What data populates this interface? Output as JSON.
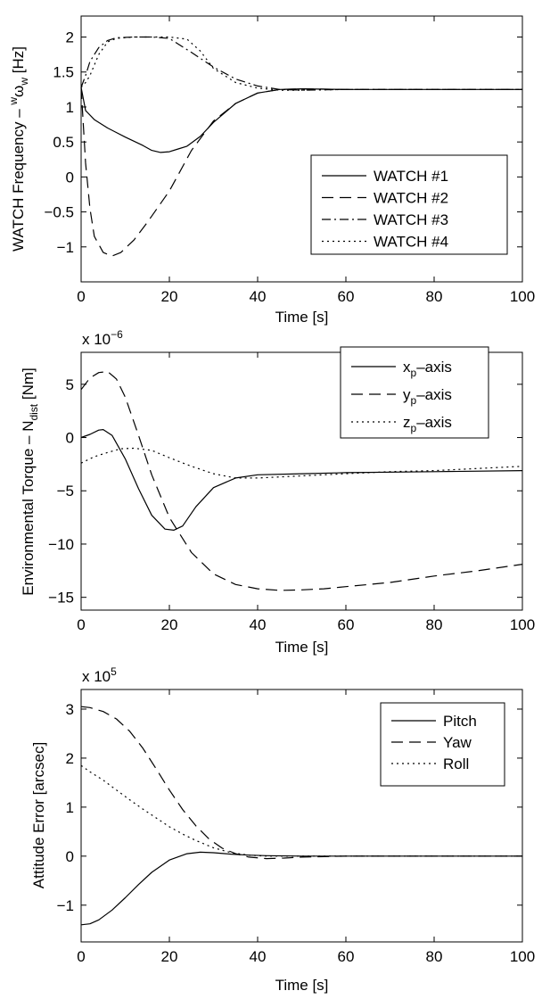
{
  "chart_data": [
    {
      "type": "line",
      "xlabel": "Time [s]",
      "ylabel": "WATCH Frequency – ",
      "ylabel_omega_sup": "w",
      "ylabel_omega": "ω",
      "ylabel_omega_sub": "w",
      "ylabel_unit": " [Hz]",
      "xlim": [
        0,
        100
      ],
      "ylim": [
        -1.5,
        2.3
      ],
      "xticks": [
        0,
        20,
        40,
        60,
        80,
        100
      ],
      "yticks": [
        -1,
        -0.5,
        0,
        0.5,
        1,
        1.5,
        2
      ],
      "grid": false,
      "legend_position": "lower-right",
      "series": [
        {
          "name": "WATCH #1",
          "style": "solid",
          "x": [
            0,
            1,
            3,
            6,
            10,
            14,
            16,
            18,
            20,
            22,
            24,
            27,
            30,
            35,
            40,
            45,
            50,
            60,
            80,
            100
          ],
          "y": [
            1.28,
            0.95,
            0.82,
            0.7,
            0.57,
            0.45,
            0.38,
            0.35,
            0.36,
            0.4,
            0.44,
            0.58,
            0.78,
            1.05,
            1.2,
            1.25,
            1.26,
            1.25,
            1.25,
            1.25
          ]
        },
        {
          "name": "WATCH #2",
          "style": "dashed",
          "x": [
            0,
            1,
            2,
            3,
            5,
            7,
            9,
            12,
            15,
            20,
            25,
            30,
            35,
            40,
            45,
            50,
            60,
            80,
            100
          ],
          "y": [
            1.28,
            0.2,
            -0.45,
            -0.85,
            -1.08,
            -1.13,
            -1.08,
            -0.9,
            -0.65,
            -0.2,
            0.38,
            0.8,
            1.05,
            1.2,
            1.25,
            1.26,
            1.25,
            1.25,
            1.25
          ]
        },
        {
          "name": "WATCH #3",
          "style": "dashdot",
          "x": [
            0,
            1,
            2,
            4,
            6,
            8,
            12,
            16,
            20,
            22,
            25,
            30,
            35,
            40,
            45,
            50,
            60,
            80,
            100
          ],
          "y": [
            1.28,
            1.45,
            1.65,
            1.85,
            1.95,
            1.99,
            2.0,
            2.0,
            1.98,
            1.9,
            1.78,
            1.57,
            1.4,
            1.3,
            1.25,
            1.24,
            1.25,
            1.25,
            1.25
          ]
        },
        {
          "name": "WATCH #4",
          "style": "dotted",
          "x": [
            0,
            1,
            2,
            4,
            6,
            8,
            12,
            16,
            20,
            24,
            27,
            30,
            35,
            40,
            45,
            50,
            60,
            80,
            100
          ],
          "y": [
            1.28,
            1.35,
            1.45,
            1.75,
            1.93,
            1.98,
            2.0,
            2.0,
            2.0,
            1.97,
            1.8,
            1.55,
            1.35,
            1.27,
            1.24,
            1.24,
            1.25,
            1.25,
            1.25
          ]
        }
      ]
    },
    {
      "type": "line",
      "xlabel": "Time [s]",
      "ylabel": "Environmental Torque – N",
      "ylabel_sub": "dist",
      "ylabel_unit": " [Nm]",
      "multiplier": "x 10",
      "multiplier_exp": "−6",
      "xlim": [
        0,
        100
      ],
      "ylim": [
        -16.2,
        8.0
      ],
      "xticks": [
        0,
        20,
        40,
        60,
        80,
        100
      ],
      "yticks": [
        -15,
        -10,
        -5,
        0,
        5
      ],
      "grid": false,
      "legend_position": "top-right",
      "series": [
        {
          "name": "x",
          "name_sub": "p",
          "name_suffix": "–axis",
          "style": "solid",
          "x": [
            0,
            2,
            4,
            5,
            7,
            10,
            13,
            16,
            19,
            21,
            23,
            26,
            30,
            35,
            40,
            50,
            60,
            80,
            100
          ],
          "y": [
            0.0,
            0.3,
            0.7,
            0.75,
            0.2,
            -2.0,
            -4.8,
            -7.3,
            -8.6,
            -8.7,
            -8.3,
            -6.5,
            -4.7,
            -3.8,
            -3.5,
            -3.4,
            -3.3,
            -3.2,
            -3.1
          ]
        },
        {
          "name": "y",
          "name_sub": "p",
          "name_suffix": "–axis",
          "style": "dashed",
          "x": [
            0,
            2,
            4,
            6,
            8,
            10,
            13,
            16,
            20,
            25,
            30,
            35,
            40,
            45,
            50,
            55,
            60,
            70,
            80,
            90,
            100
          ],
          "y": [
            4.5,
            5.6,
            6.1,
            6.2,
            5.5,
            3.8,
            0.2,
            -3.5,
            -7.5,
            -10.8,
            -12.8,
            -13.8,
            -14.2,
            -14.35,
            -14.3,
            -14.2,
            -14.0,
            -13.6,
            -13.0,
            -12.5,
            -11.9
          ]
        },
        {
          "name": "z",
          "name_sub": "p",
          "name_suffix": "–axis",
          "style": "dotted",
          "x": [
            0,
            3,
            6,
            9,
            12,
            16,
            20,
            25,
            30,
            35,
            40,
            50,
            60,
            70,
            80,
            90,
            100
          ],
          "y": [
            -2.4,
            -1.8,
            -1.4,
            -1.05,
            -1.0,
            -1.2,
            -1.9,
            -2.7,
            -3.4,
            -3.8,
            -3.8,
            -3.6,
            -3.4,
            -3.2,
            -3.1,
            -2.9,
            -2.7
          ]
        }
      ]
    },
    {
      "type": "line",
      "xlabel": "Time [s]",
      "ylabel": "Attitude Error [arcsec]",
      "multiplier": "x 10",
      "multiplier_exp": "5",
      "xlim": [
        0,
        100
      ],
      "ylim": [
        -1.75,
        3.4
      ],
      "xticks": [
        0,
        20,
        40,
        60,
        80,
        100
      ],
      "yticks": [
        -1,
        0,
        1,
        2,
        3
      ],
      "grid": false,
      "legend_position": "top-right",
      "series": [
        {
          "name": "Pitch",
          "style": "solid",
          "x": [
            0,
            2,
            4,
            7,
            10,
            13,
            16,
            20,
            24,
            27,
            30,
            34,
            38,
            42,
            50,
            60,
            80,
            100
          ],
          "y": [
            -1.4,
            -1.38,
            -1.3,
            -1.1,
            -0.85,
            -0.58,
            -0.33,
            -0.08,
            0.05,
            0.08,
            0.07,
            0.04,
            0.02,
            0.01,
            0.0,
            0.0,
            0.0,
            0.0
          ]
        },
        {
          "name": "Yaw",
          "style": "dashed",
          "x": [
            0,
            2,
            5,
            8,
            11,
            14,
            17,
            20,
            23,
            26,
            29,
            32,
            35,
            38,
            42,
            46,
            50,
            55,
            60,
            80,
            100
          ],
          "y": [
            3.05,
            3.03,
            2.95,
            2.8,
            2.55,
            2.2,
            1.78,
            1.35,
            0.95,
            0.62,
            0.35,
            0.16,
            0.05,
            -0.02,
            -0.05,
            -0.04,
            -0.02,
            -0.01,
            0.0,
            0.0,
            0.0
          ]
        },
        {
          "name": "Roll",
          "style": "dotted",
          "x": [
            0,
            2,
            5,
            8,
            11,
            14,
            17,
            20,
            23,
            26,
            30,
            34,
            38,
            42,
            50,
            60,
            80,
            100
          ],
          "y": [
            1.85,
            1.72,
            1.55,
            1.35,
            1.15,
            0.96,
            0.78,
            0.6,
            0.45,
            0.32,
            0.17,
            0.07,
            0.02,
            0.0,
            0.0,
            0.0,
            0.0,
            0.0
          ]
        }
      ]
    }
  ]
}
